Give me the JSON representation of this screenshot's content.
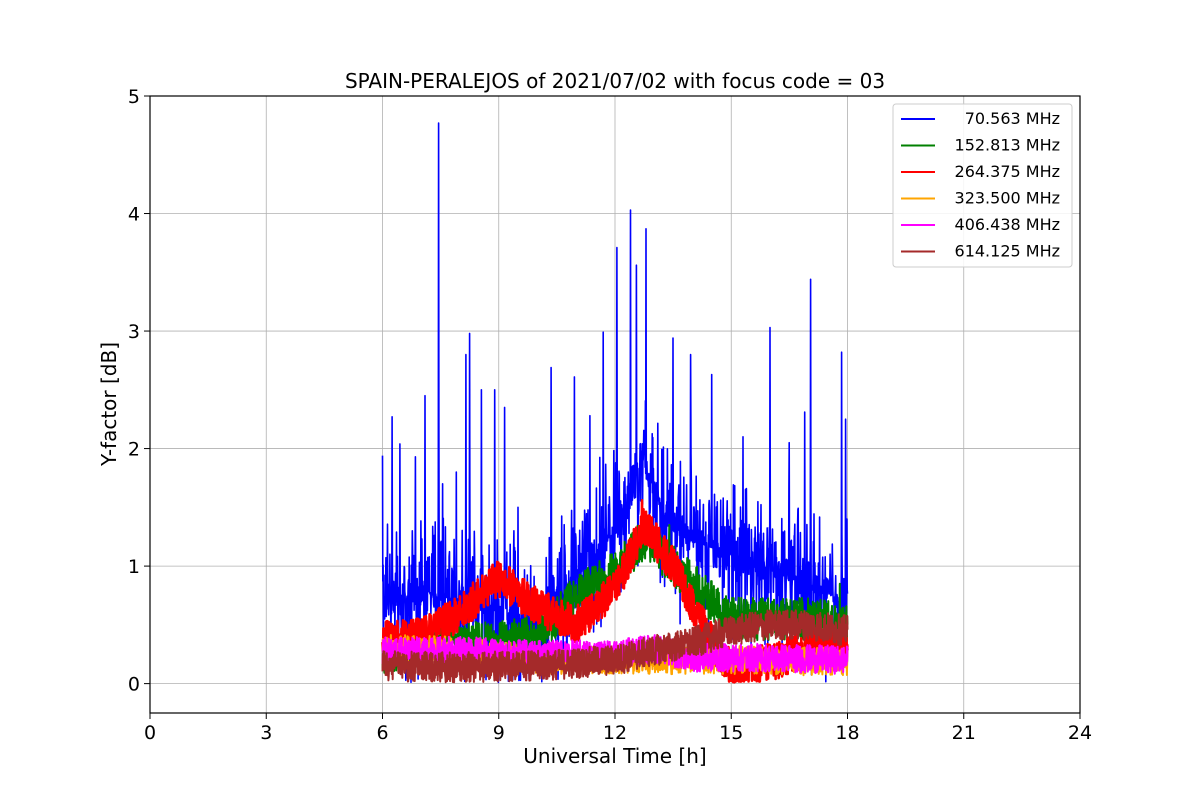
{
  "chart_data": {
    "type": "line",
    "title": "SPAIN-PERALEJOS of 2021/07/02 with focus code = 03",
    "xlabel": "Universal Time [h]",
    "ylabel": "Y-factor [dB]",
    "xlim": [
      0,
      24
    ],
    "ylim": [
      -0.25,
      5
    ],
    "xticks": [
      0,
      3,
      6,
      9,
      12,
      15,
      18,
      21,
      24
    ],
    "yticks": [
      0,
      1,
      2,
      3,
      4,
      5
    ],
    "grid": true,
    "legend_position": "top-right",
    "series": [
      {
        "name": "70.563 MHz",
        "color": "#0000ff",
        "baseline": [
          [
            6,
            0.7
          ],
          [
            7,
            0.8
          ],
          [
            8,
            0.7
          ],
          [
            9,
            0.6
          ],
          [
            10,
            0.5
          ],
          [
            11,
            0.9
          ],
          [
            12,
            1.3
          ],
          [
            12.7,
            1.9
          ],
          [
            13.5,
            1.3
          ],
          [
            15,
            1.1
          ],
          [
            16.5,
            0.9
          ],
          [
            18,
            0.7
          ]
        ],
        "noise": 0.85,
        "spikes": [
          [
            6.0,
            1.94
          ],
          [
            6.25,
            2.27
          ],
          [
            6.45,
            2.04
          ],
          [
            6.85,
            1.93
          ],
          [
            7.1,
            2.45
          ],
          [
            7.45,
            4.77
          ],
          [
            7.55,
            1.7
          ],
          [
            7.9,
            1.8
          ],
          [
            8.15,
            2.8
          ],
          [
            8.25,
            2.98
          ],
          [
            8.55,
            2.5
          ],
          [
            8.9,
            2.5
          ],
          [
            9.15,
            2.35
          ],
          [
            9.5,
            1.5
          ],
          [
            10.35,
            2.69
          ],
          [
            10.95,
            2.61
          ],
          [
            11.35,
            2.28
          ],
          [
            11.7,
            2.99
          ],
          [
            12.05,
            3.71
          ],
          [
            12.4,
            4.03
          ],
          [
            12.55,
            3.56
          ],
          [
            12.8,
            3.87
          ],
          [
            13.5,
            2.94
          ],
          [
            13.95,
            2.8
          ],
          [
            14.5,
            2.63
          ],
          [
            15.3,
            2.1
          ],
          [
            16.0,
            3.03
          ],
          [
            16.5,
            2.05
          ],
          [
            16.9,
            2.31
          ],
          [
            17.05,
            3.44
          ],
          [
            17.85,
            2.82
          ],
          [
            17.95,
            2.25
          ]
        ]
      },
      {
        "name": "152.813 MHz",
        "color": "#008000",
        "baseline": [
          [
            6,
            0.25
          ],
          [
            7,
            0.3
          ],
          [
            8,
            0.35
          ],
          [
            9,
            0.35
          ],
          [
            10,
            0.4
          ],
          [
            11,
            0.75
          ],
          [
            12,
            0.95
          ],
          [
            12.8,
            1.25
          ],
          [
            13.5,
            1.0
          ],
          [
            14.5,
            0.7
          ],
          [
            15,
            0.55
          ],
          [
            16,
            0.55
          ],
          [
            17,
            0.55
          ],
          [
            18,
            0.5
          ]
        ],
        "noise": 0.18,
        "spikes": [
          [
            13.4,
            1.35
          ],
          [
            17.8,
            0.85
          ]
        ]
      },
      {
        "name": "264.375 MHz",
        "color": "#ff0000",
        "baseline": [
          [
            6,
            0.37
          ],
          [
            7,
            0.4
          ],
          [
            8,
            0.6
          ],
          [
            9,
            0.9
          ],
          [
            10,
            0.65
          ],
          [
            11,
            0.5
          ],
          [
            12,
            0.8
          ],
          [
            12.75,
            1.35
          ],
          [
            13.5,
            1.0
          ],
          [
            14.5,
            0.35
          ],
          [
            15,
            0.12
          ],
          [
            16,
            0.18
          ],
          [
            17,
            0.3
          ],
          [
            18,
            0.3
          ]
        ],
        "noise": 0.16,
        "spikes": [
          [
            12.7,
            1.56
          ]
        ]
      },
      {
        "name": "323.500 MHz",
        "color": "#ffa500",
        "baseline": [
          [
            6,
            0.3
          ],
          [
            8,
            0.28
          ],
          [
            9,
            0.25
          ],
          [
            10,
            0.2
          ],
          [
            12,
            0.2
          ],
          [
            14,
            0.2
          ],
          [
            16,
            0.2
          ],
          [
            18,
            0.18
          ]
        ],
        "noise": 0.12,
        "spikes": []
      },
      {
        "name": "406.438 MHz",
        "color": "#ff00ff",
        "baseline": [
          [
            6,
            0.28
          ],
          [
            8,
            0.28
          ],
          [
            10,
            0.25
          ],
          [
            12,
            0.25
          ],
          [
            13,
            0.3
          ],
          [
            14,
            0.22
          ],
          [
            16,
            0.22
          ],
          [
            18,
            0.2
          ]
        ],
        "noise": 0.12,
        "spikes": []
      },
      {
        "name": "614.125 MHz",
        "color": "#a52a2a",
        "baseline": [
          [
            6,
            0.15
          ],
          [
            8,
            0.14
          ],
          [
            10,
            0.15
          ],
          [
            12,
            0.2
          ],
          [
            13,
            0.28
          ],
          [
            14,
            0.35
          ],
          [
            15,
            0.45
          ],
          [
            16,
            0.5
          ],
          [
            17,
            0.5
          ],
          [
            18,
            0.45
          ]
        ],
        "noise": 0.13,
        "spikes": []
      }
    ]
  }
}
